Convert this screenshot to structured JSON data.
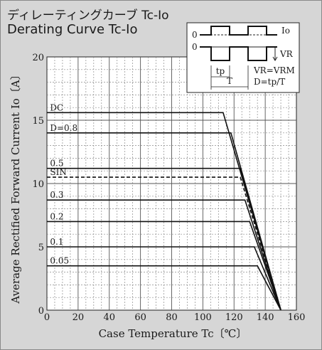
{
  "chart_data": {
    "type": "line",
    "title": "ディレーティングカーブ Tc-Io",
    "subtitle": "Derating Curve Tc-Io",
    "xlabel": "Case Temperature  Tc〔℃〕",
    "ylabel": "Average Rectified Forward Current  Io〔A〕",
    "xlim": [
      0,
      160
    ],
    "ylim": [
      0,
      20
    ],
    "xticks": [
      0,
      20,
      40,
      60,
      80,
      100,
      120,
      140,
      160
    ],
    "yticks": [
      0,
      5,
      10,
      15,
      20
    ],
    "grid": true,
    "series": [
      {
        "name": "DC",
        "x": [
          0,
          113,
          150
        ],
        "y": [
          15.6,
          15.6,
          0
        ]
      },
      {
        "name": "D=0.8",
        "x": [
          0,
          118,
          150
        ],
        "y": [
          14.0,
          14.0,
          0
        ]
      },
      {
        "name": "0.5",
        "x": [
          0,
          124,
          150
        ],
        "y": [
          11.2,
          11.2,
          0
        ]
      },
      {
        "name": "SIN",
        "x": [
          0,
          124,
          150
        ],
        "y": [
          10.5,
          10.5,
          0
        ]
      },
      {
        "name": "0.3",
        "x": [
          0,
          127,
          150
        ],
        "y": [
          8.7,
          8.7,
          0
        ]
      },
      {
        "name": "0.2",
        "x": [
          0,
          130,
          150
        ],
        "y": [
          7.0,
          7.0,
          0
        ]
      },
      {
        "name": "0.1",
        "x": [
          0,
          133,
          150
        ],
        "y": [
          5.0,
          5.0,
          0
        ]
      },
      {
        "name": "0.05",
        "x": [
          0,
          135,
          150
        ],
        "y": [
          3.5,
          3.5,
          0
        ]
      }
    ],
    "inset": {
      "io_label": "Io",
      "zero_label_1": "0",
      "zero_label_2": "0",
      "vr_label": "VR",
      "tp_label": "tp",
      "t_label": "T",
      "eq1": "VR=VRM",
      "eq2": "D=tp/T"
    }
  }
}
